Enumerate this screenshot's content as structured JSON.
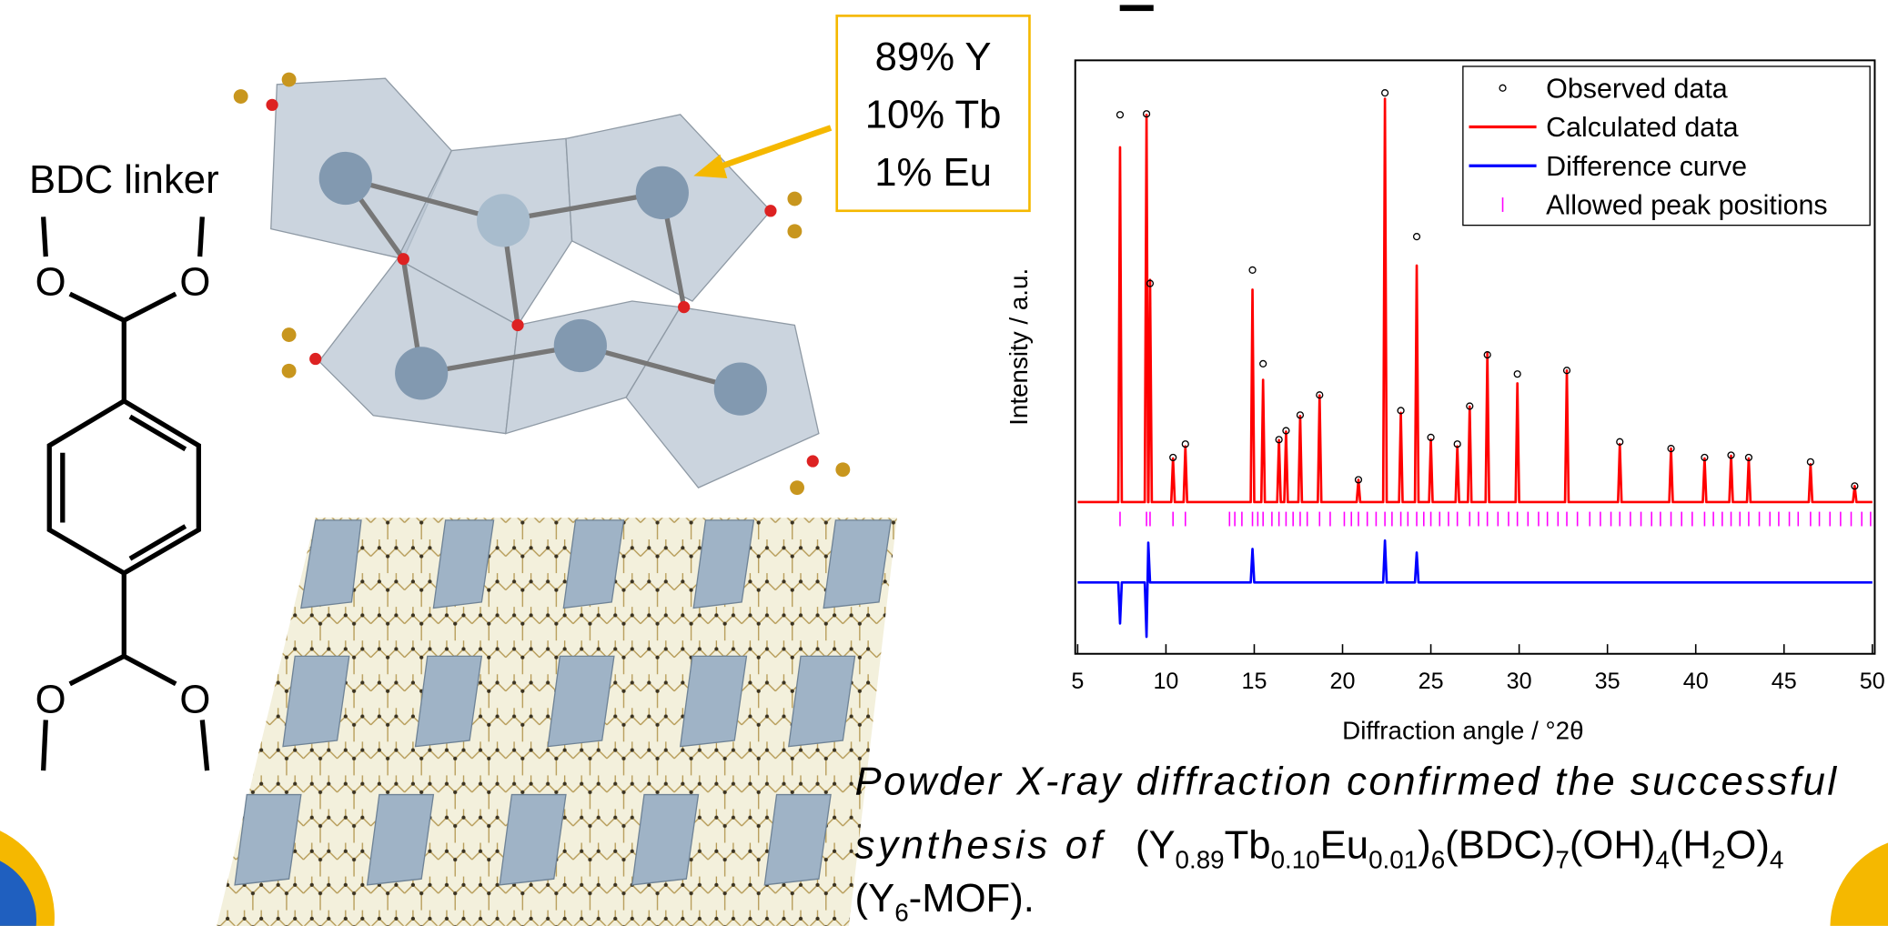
{
  "linker": {
    "title": "BDC linker",
    "atoms": [
      "O",
      "O",
      "O",
      "O"
    ]
  },
  "composition": [
    "89% Y",
    "10% Tb",
    "1% Eu"
  ],
  "chart_data": {
    "type": "line",
    "xlabel": "Diffraction angle / °2θ",
    "ylabel": "Intensity / a.u.",
    "xlim": [
      5,
      50
    ],
    "xticks": [
      5,
      10,
      15,
      20,
      25,
      30,
      35,
      40,
      45,
      50
    ],
    "ylim": [
      -33,
      100
    ],
    "grid": false,
    "legend": "upper right",
    "series": [
      {
        "name": "Observed data",
        "color": "#000000",
        "style": "markers",
        "x": [
          7.4,
          8.9,
          9.1,
          10.4,
          11.1,
          14.9,
          15.5,
          16.4,
          16.8,
          17.6,
          18.7,
          20.9,
          22.4,
          23.3,
          24.2,
          25,
          26.5,
          27.2,
          28.2,
          29.9,
          32.7,
          35.7,
          38.6,
          40.5,
          42,
          43,
          46.5,
          49
        ],
        "values": [
          87.8,
          88,
          50,
          11,
          14,
          53,
          32,
          15,
          17,
          20.5,
          25,
          6,
          92.7,
          21.5,
          60.5,
          15.5,
          14,
          22.5,
          34,
          29.7,
          30.5,
          14.5,
          13,
          11,
          11.5,
          11,
          10,
          4.6
        ]
      },
      {
        "name": "Calculated data",
        "color": "#ff0000",
        "style": "line",
        "x": [
          5,
          7.3,
          7.4,
          7.5,
          8.8,
          8.9,
          8.99,
          9.01,
          9.1,
          9.2,
          10.3,
          10.4,
          10.5,
          11,
          11.1,
          11.2,
          14.8,
          14.9,
          15,
          15.4,
          15.5,
          15.6,
          16.3,
          16.4,
          16.5,
          16.7,
          16.8,
          16.9,
          17.5,
          17.6,
          17.7,
          18.6,
          18.7,
          18.8,
          20.8,
          20.9,
          21,
          22.3,
          22.4,
          22.5,
          23.2,
          23.3,
          23.4,
          24.1,
          24.2,
          24.3,
          24.9,
          25,
          25.1,
          26.4,
          26.5,
          26.6,
          27.1,
          27.2,
          27.3,
          28.1,
          28.2,
          28.3,
          29.8,
          29.9,
          30,
          32.6,
          32.7,
          32.8,
          35.6,
          35.7,
          35.8,
          38.5,
          38.6,
          38.7,
          40.4,
          40.5,
          40.6,
          41.9,
          42,
          42.1,
          42.9,
          43,
          43.1,
          46.4,
          46.5,
          46.6,
          48.9,
          49,
          49.1,
          50
        ],
        "values": [
          1,
          1,
          80.5,
          1,
          1,
          87.8,
          1,
          1,
          50.8,
          1,
          1,
          10.8,
          1,
          1,
          13.5,
          1,
          1,
          48.6,
          1,
          1,
          28.4,
          1,
          1,
          14.9,
          1,
          1,
          16.8,
          1,
          1,
          20.3,
          1,
          1,
          24.9,
          1,
          1,
          6,
          1,
          1,
          91.4,
          1,
          1,
          21,
          1,
          1,
          54,
          1,
          1,
          15,
          1,
          1,
          13.5,
          1,
          1,
          22.4,
          1,
          1,
          34.3,
          1,
          1,
          27.6,
          1,
          1,
          30.5,
          1,
          1,
          14,
          1,
          1,
          13,
          1,
          1,
          10.8,
          1,
          1,
          11.4,
          1,
          1,
          10.8,
          1,
          1,
          9.5,
          1,
          1,
          4.6,
          1,
          1
        ]
      },
      {
        "name": "Difference curve",
        "color": "#0000ff",
        "style": "line",
        "x": [
          5,
          7.3,
          7.4,
          7.5,
          8.8,
          8.9,
          9.0,
          9.1,
          9.2,
          14.8,
          14.9,
          15,
          22.3,
          22.4,
          22.5,
          24.1,
          24.2,
          24.3,
          50
        ],
        "values": [
          -17,
          -17,
          -26.2,
          -17,
          -17,
          -29.2,
          -8.1,
          -17,
          -17,
          -17,
          -9.5,
          -17,
          -17,
          -7.6,
          -17,
          -17,
          -10.3,
          -17,
          -17
        ]
      },
      {
        "name": "Allowed peak positions",
        "color": "#ff00ff",
        "style": "ticks",
        "x": [
          7.4,
          8.9,
          9.1,
          10.4,
          11.1,
          13.6,
          13.9,
          14.3,
          14.9,
          15.2,
          15.5,
          16.0,
          16.4,
          16.8,
          17.2,
          17.6,
          18.0,
          18.7,
          19.3,
          20.1,
          20.5,
          20.9,
          21.4,
          21.9,
          22.4,
          22.8,
          23.3,
          23.7,
          24.2,
          24.6,
          25.0,
          25.5,
          26.0,
          26.5,
          27.2,
          27.7,
          28.2,
          28.8,
          29.4,
          29.9,
          30.5,
          31.1,
          31.6,
          32.2,
          32.7,
          33.3,
          34.0,
          34.6,
          35.2,
          35.7,
          36.3,
          36.9,
          37.5,
          38.0,
          38.6,
          39.2,
          39.8,
          40.5,
          41.0,
          41.5,
          42.0,
          42.5,
          43.0,
          43.6,
          44.2,
          44.7,
          45.3,
          45.8,
          46.5,
          47.0,
          47.6,
          48.2,
          48.8,
          49.4,
          49.9
        ]
      }
    ]
  },
  "caption": {
    "line1": "Powder X-ray diffraction confirmed the successful",
    "line2_lead": "synthesis of",
    "formula": [
      "(Y",
      "0.89",
      "Tb",
      "0.10",
      "Eu",
      "0.01",
      ")",
      "6",
      "(BDC)",
      "7",
      "(OH)",
      "4",
      "(H",
      "2",
      "O)",
      "4"
    ],
    "line3": [
      "(Y",
      "6",
      "-MOF)."
    ]
  }
}
